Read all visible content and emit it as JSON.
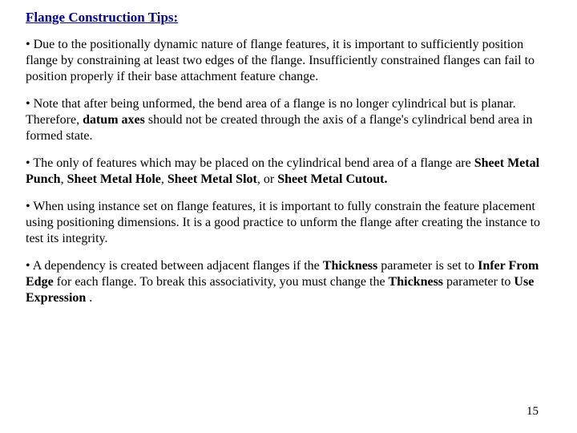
{
  "document": {
    "heading": "Flange Construction Tips:",
    "paragraphs": {
      "p1": "• Due to the positionally dynamic nature of flange features, it is important to sufficiently position flange by constraining at least two edges of the flange. Insufficiently constrained flanges can fail to position properly if their base attachment feature change.",
      "p2_before": "•  Note that after being unformed, the bend area of a flange is no longer cylindrical but is planar. Therefore, ",
      "p2_bold": "datum axes",
      "p2_after": " should not be created through the axis of a flange's cylindrical bend area in formed state.",
      "p3_before": "• The only of  features which may be placed on the cylindrical bend area of a flange are ",
      "p3_b1": "Sheet Metal Punch",
      "p3_s1": ", ",
      "p3_b2": "Sheet Metal Hole",
      "p3_s2": ", ",
      "p3_b3": "Sheet Metal Slot",
      "p3_s3": ", or ",
      "p3_b4": "Sheet Metal Cutout.",
      "p4": "• When using instance set on flange features, it is important to fully constrain the feature placement using positioning dimensions. It is a good practice to unform the flange after creating the instance to test its integrity.",
      "p5_before": "• A dependency is created between adjacent flanges if the ",
      "p5_b1": "Thickness",
      "p5_s1": " parameter is set to ",
      "p5_b2": "Infer From Edge",
      "p5_s2": " for each flange. To break this associativity, you must change the ",
      "p5_b3": "Thickness",
      "p5_s3": " parameter to ",
      "p5_b4": "Use Expression",
      "p5_after": " ."
    },
    "page_number": "15",
    "colors": {
      "heading": "#000099",
      "body_text": "#000000",
      "background": "#ffffff"
    },
    "typography": {
      "font_family": "Times New Roman",
      "heading_fontsize": 17,
      "body_fontsize": 16,
      "heading_weight": "bold"
    }
  }
}
